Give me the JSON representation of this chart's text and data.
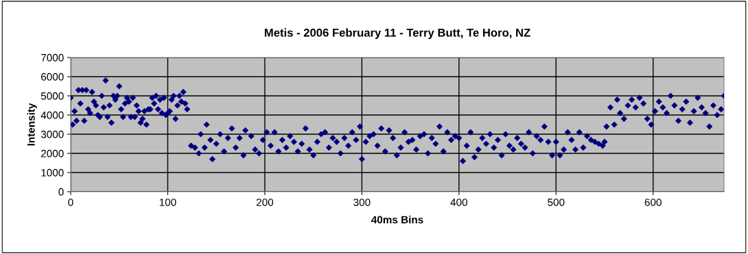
{
  "chart_data": {
    "type": "scatter",
    "title": "Metis - 2006 February 11 - Terry Butt, Te Horo, NZ",
    "xlabel": "40ms Bins",
    "ylabel": "Intensity",
    "xlim": [
      0,
      673
    ],
    "xticks": [
      0,
      100,
      200,
      300,
      400,
      500,
      600
    ],
    "ylim": [
      0,
      7000
    ],
    "yticks": [
      0,
      1000,
      2000,
      3000,
      4000,
      5000,
      6000,
      7000
    ],
    "grid": true,
    "marker": "diamond",
    "legend": false,
    "series": [
      {
        "color": "#000080",
        "x": [
          0,
          2,
          4,
          6,
          8,
          10,
          12,
          14,
          16,
          18,
          20,
          22,
          24,
          26,
          28,
          30,
          32,
          34,
          36,
          38,
          40,
          42,
          44,
          46,
          48,
          50,
          52,
          54,
          56,
          58,
          60,
          62,
          64,
          66,
          68,
          70,
          72,
          74,
          76,
          78,
          80,
          82,
          84,
          86,
          88,
          90,
          92,
          94,
          96,
          98,
          100,
          102,
          104,
          106,
          108,
          110,
          112,
          114,
          116,
          118,
          120,
          124,
          128,
          132,
          134,
          138,
          140,
          144,
          146,
          150,
          154,
          158,
          162,
          166,
          170,
          174,
          178,
          180,
          186,
          190,
          194,
          198,
          202,
          206,
          210,
          214,
          218,
          222,
          226,
          230,
          234,
          238,
          242,
          246,
          250,
          254,
          258,
          262,
          266,
          270,
          274,
          278,
          282,
          286,
          290,
          294,
          298,
          300,
          304,
          308,
          312,
          316,
          320,
          324,
          328,
          332,
          336,
          340,
          344,
          348,
          352,
          356,
          360,
          364,
          368,
          372,
          376,
          380,
          384,
          388,
          392,
          396,
          400,
          404,
          408,
          412,
          416,
          420,
          424,
          428,
          432,
          436,
          440,
          444,
          448,
          452,
          456,
          460,
          464,
          468,
          472,
          476,
          480,
          484,
          488,
          492,
          496,
          500,
          504,
          508,
          512,
          516,
          520,
          524,
          528,
          532,
          536,
          540,
          544,
          548,
          550,
          552,
          556,
          560,
          563,
          566,
          570,
          574,
          578,
          582,
          586,
          590,
          594,
          598,
          602,
          606,
          610,
          614,
          618,
          622,
          626,
          630,
          634,
          638,
          642,
          646,
          650,
          654,
          658,
          662,
          666,
          670,
          673
        ],
        "values": [
          4900,
          3500,
          4200,
          3700,
          5300,
          4600,
          5300,
          3700,
          5300,
          4300,
          4100,
          5200,
          4700,
          4500,
          4000,
          3900,
          5000,
          4400,
          5800,
          3900,
          4500,
          3600,
          5000,
          4800,
          5000,
          5500,
          4300,
          3900,
          4600,
          4900,
          4700,
          3900,
          4900,
          3900,
          4500,
          4200,
          3600,
          3800,
          4200,
          3500,
          4300,
          4300,
          4900,
          4600,
          5000,
          4300,
          4800,
          4100,
          4900,
          4000,
          4100,
          4200,
          4800,
          5000,
          3800,
          4500,
          5000,
          4700,
          5200,
          4600,
          4300,
          2400,
          2300,
          2000,
          3000,
          2300,
          3500,
          2700,
          1700,
          2500,
          3000,
          2100,
          2800,
          3300,
          2300,
          2800,
          1900,
          3200,
          2900,
          2200,
          2000,
          2700,
          3100,
          2400,
          3100,
          2100,
          2700,
          2300,
          2900,
          2600,
          2100,
          2500,
          3300,
          2200,
          1900,
          2600,
          3000,
          3100,
          2300,
          2800,
          2600,
          2000,
          2800,
          2400,
          3100,
          2700,
          3400,
          1700,
          2600,
          2900,
          3000,
          2400,
          3300,
          2100,
          3200,
          2800,
          1900,
          2300,
          3100,
          2600,
          2700,
          2200,
          2900,
          3000,
          2000,
          2800,
          2500,
          3400,
          2100,
          3100,
          2700,
          2900,
          2800,
          1600,
          2400,
          3100,
          1800,
          2200,
          2800,
          2500,
          3000,
          2300,
          2700,
          1900,
          3000,
          2400,
          2200,
          2800,
          2500,
          2300,
          3100,
          2000,
          2900,
          2700,
          3400,
          2600,
          1900,
          2600,
          1900,
          2200,
          3100,
          2700,
          2200,
          3100,
          2300,
          2900,
          2700,
          2600,
          2500,
          2400,
          2600,
          3400,
          4400,
          3500,
          4800,
          4100,
          3800,
          4500,
          4800,
          4400,
          4900,
          4600,
          3800,
          3500,
          4200,
          4700,
          4400,
          4100,
          5000,
          4500,
          3700,
          4300,
          4700,
          3600,
          4200,
          4900,
          4400,
          4100,
          3400,
          4500,
          4000,
          4300,
          5000
        ]
      }
    ]
  }
}
